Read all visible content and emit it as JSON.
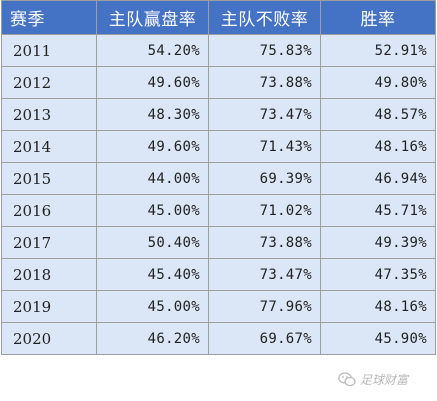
{
  "table": {
    "headers": [
      "赛季",
      "主队赢盘率",
      "主队不败率",
      "胜率"
    ],
    "rows": [
      {
        "season": "2011",
        "home_cover_rate": "54.20%",
        "home_unbeaten_rate": "75.83%",
        "win_rate": "52.91%"
      },
      {
        "season": "2012",
        "home_cover_rate": "49.60%",
        "home_unbeaten_rate": "73.88%",
        "win_rate": "49.80%"
      },
      {
        "season": "2013",
        "home_cover_rate": "48.30%",
        "home_unbeaten_rate": "73.47%",
        "win_rate": "48.57%"
      },
      {
        "season": "2014",
        "home_cover_rate": "49.60%",
        "home_unbeaten_rate": "71.43%",
        "win_rate": "48.16%"
      },
      {
        "season": "2015",
        "home_cover_rate": "44.00%",
        "home_unbeaten_rate": "69.39%",
        "win_rate": "46.94%"
      },
      {
        "season": "2016",
        "home_cover_rate": "45.00%",
        "home_unbeaten_rate": "71.02%",
        "win_rate": "45.71%"
      },
      {
        "season": "2017",
        "home_cover_rate": "50.40%",
        "home_unbeaten_rate": "73.88%",
        "win_rate": "49.39%"
      },
      {
        "season": "2018",
        "home_cover_rate": "45.40%",
        "home_unbeaten_rate": "73.47%",
        "win_rate": "47.35%"
      },
      {
        "season": "2019",
        "home_cover_rate": "45.00%",
        "home_unbeaten_rate": "77.96%",
        "win_rate": "48.16%"
      },
      {
        "season": "2020",
        "home_cover_rate": "46.20%",
        "home_unbeaten_rate": "69.67%",
        "win_rate": "45.90%"
      }
    ]
  },
  "watermark": {
    "text": "足球财富",
    "icon": "wechat-icon"
  },
  "colors": {
    "header_bg": "#4472c4",
    "header_text": "#ffffff",
    "cell_bg": "#dbe7f6",
    "border": "#9e9e9e"
  }
}
